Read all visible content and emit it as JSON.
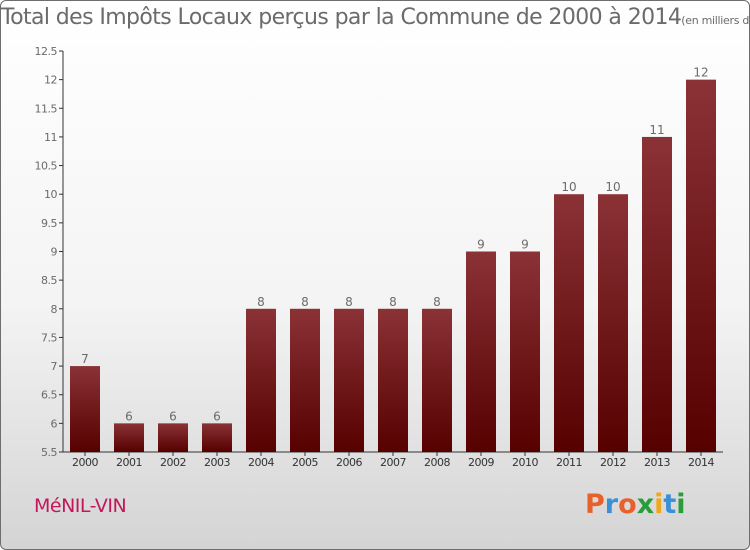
{
  "title": "Total des Impôts Locaux perçus par la Commune de 2000 à 2014",
  "unit": "(en milliers d'€)",
  "commune": "MéNIL-VIN",
  "brand": "Proxiti",
  "colors": {
    "bar_top": "#8a3236",
    "bar_bottom": "#560000",
    "accent": "#c2185b",
    "text": "#6b6b6b"
  },
  "chart_data": {
    "type": "bar",
    "title": "Total des Impôts Locaux perçus par la Commune de 2000 à 2014",
    "unit": "(en milliers d'€)",
    "categories": [
      "2000",
      "2001",
      "2002",
      "2003",
      "2004",
      "2005",
      "2006",
      "2007",
      "2008",
      "2009",
      "2010",
      "2011",
      "2012",
      "2013",
      "2014"
    ],
    "values": [
      7,
      6,
      6,
      6,
      8,
      8,
      8,
      8,
      8,
      9,
      9,
      10,
      10,
      11,
      12
    ],
    "ylim": [
      5.5,
      12.5
    ],
    "yticks": [
      "5.5",
      "6",
      "6.5",
      "7",
      "7.5",
      "8",
      "8.5",
      "9",
      "9.5",
      "10",
      "10.5",
      "11",
      "11.5",
      "12",
      "12.5"
    ],
    "grid": false,
    "legend": "none"
  }
}
